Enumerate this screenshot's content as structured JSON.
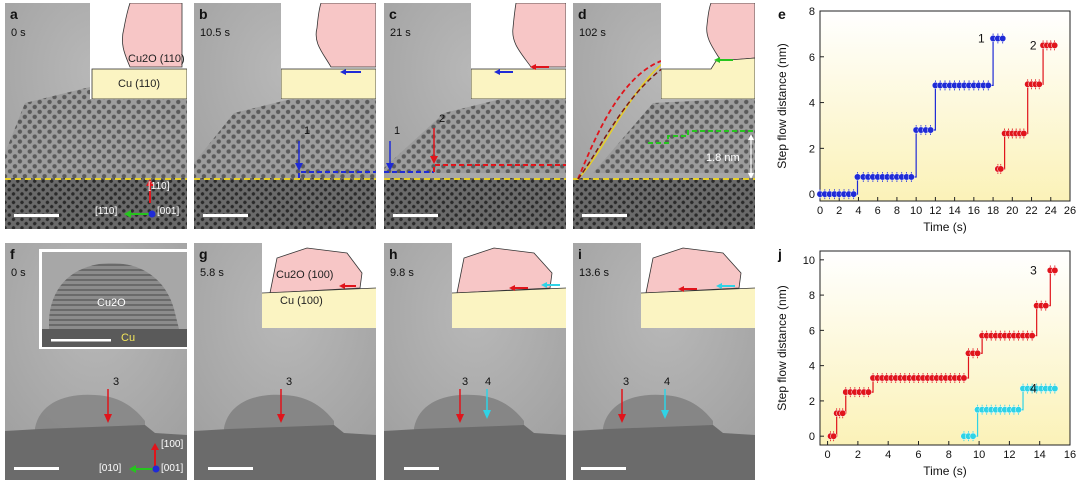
{
  "panels_top": [
    {
      "id": "a",
      "time": "0 s"
    },
    {
      "id": "b",
      "time": "10.5 s"
    },
    {
      "id": "c",
      "time": "21 s"
    },
    {
      "id": "d",
      "time": "102 s"
    }
  ],
  "panels_bottom": [
    {
      "id": "f",
      "time": "0 s"
    },
    {
      "id": "g",
      "time": "5.8 s"
    },
    {
      "id": "h",
      "time": "9.8 s"
    },
    {
      "id": "i",
      "time": "13.6 s"
    }
  ],
  "labels": {
    "cu2o_110": "Cu2O (110)",
    "cu_110": "Cu (110)",
    "cu2o_100": "Cu2O (100)",
    "cu_100": "Cu (100)",
    "cu2o": "Cu2O",
    "cu": "Cu",
    "dir_110": "[110]",
    "dir_m110": "[1̄10]",
    "dir_001": "[001]",
    "dir_100": "[100]",
    "dir_010": "[010]",
    "step1": "1",
    "step2": "2",
    "step3": "3",
    "step4": "4",
    "height": "1.8 nm"
  },
  "colors": {
    "blue": "#1f2bd6",
    "red": "#e0141b",
    "cyan": "#2fd3e6",
    "yellow_dash": "#e6cf2a",
    "green": "#26c41e",
    "oxide_fill": "#f7c6c6",
    "cu_fill": "#fbf4c2"
  },
  "chart_data": [
    {
      "panel": "e",
      "type": "line",
      "xlabel": "Time (s)",
      "ylabel": "Step flow distance (nm)",
      "xlim": [
        0,
        26
      ],
      "ylim": [
        -0.3,
        8
      ],
      "xticks": [
        0,
        2,
        4,
        6,
        8,
        10,
        12,
        14,
        16,
        18,
        20,
        22,
        24,
        26
      ],
      "yticks": [
        0,
        2,
        4,
        6,
        8
      ],
      "series": [
        {
          "name": "1",
          "color": "#1f2bd6",
          "points": [
            [
              0,
              0
            ],
            [
              0.5,
              0
            ],
            [
              1,
              0
            ],
            [
              1.5,
              0
            ],
            [
              2,
              0
            ],
            [
              2.5,
              0
            ],
            [
              3,
              0
            ],
            [
              3.5,
              0
            ],
            [
              3.9,
              0.75
            ],
            [
              4.5,
              0.75
            ],
            [
              5,
              0.75
            ],
            [
              5.5,
              0.75
            ],
            [
              6,
              0.75
            ],
            [
              6.5,
              0.75
            ],
            [
              7,
              0.75
            ],
            [
              7.5,
              0.75
            ],
            [
              8,
              0.75
            ],
            [
              8.5,
              0.75
            ],
            [
              9,
              0.75
            ],
            [
              9.5,
              0.75
            ],
            [
              10,
              2.8
            ],
            [
              10.5,
              2.8
            ],
            [
              11,
              2.8
            ],
            [
              11.5,
              2.8
            ],
            [
              12,
              4.75
            ],
            [
              12.5,
              4.75
            ],
            [
              13,
              4.75
            ],
            [
              13.5,
              4.75
            ],
            [
              14,
              4.75
            ],
            [
              14.5,
              4.75
            ],
            [
              15,
              4.75
            ],
            [
              15.5,
              4.75
            ],
            [
              16,
              4.75
            ],
            [
              16.5,
              4.75
            ],
            [
              17,
              4.75
            ],
            [
              17.5,
              4.75
            ],
            [
              18,
              6.8
            ],
            [
              18.5,
              6.8
            ],
            [
              19,
              6.8
            ]
          ]
        },
        {
          "name": "2",
          "color": "#e0141b",
          "points": [
            [
              18.5,
              1.1
            ],
            [
              18.8,
              1.1
            ],
            [
              19.2,
              2.65
            ],
            [
              19.6,
              2.65
            ],
            [
              20,
              2.65
            ],
            [
              20.4,
              2.65
            ],
            [
              20.8,
              2.65
            ],
            [
              21.2,
              2.65
            ],
            [
              21.6,
              4.8
            ],
            [
              22,
              4.8
            ],
            [
              22.4,
              4.8
            ],
            [
              22.8,
              4.8
            ],
            [
              23.2,
              6.5
            ],
            [
              23.6,
              6.5
            ],
            [
              24,
              6.5
            ],
            [
              24.4,
              6.5
            ]
          ]
        }
      ]
    },
    {
      "panel": "j",
      "type": "line",
      "xlabel": "Time (s)",
      "ylabel": "Step flow distance (nm)",
      "xlim": [
        -0.5,
        16
      ],
      "ylim": [
        -0.5,
        10.5
      ],
      "xticks": [
        0,
        2,
        4,
        6,
        8,
        10,
        12,
        14,
        16
      ],
      "yticks": [
        0,
        2,
        4,
        6,
        8,
        10
      ],
      "series": [
        {
          "name": "3",
          "color": "#e0141b",
          "points": [
            [
              0.2,
              0
            ],
            [
              0.4,
              0
            ],
            [
              0.6,
              1.3
            ],
            [
              0.8,
              1.3
            ],
            [
              1.0,
              1.3
            ],
            [
              1.2,
              2.5
            ],
            [
              1.5,
              2.5
            ],
            [
              1.8,
              2.5
            ],
            [
              2.1,
              2.5
            ],
            [
              2.4,
              2.5
            ],
            [
              2.7,
              2.5
            ],
            [
              3.0,
              3.3
            ],
            [
              3.3,
              3.3
            ],
            [
              3.6,
              3.3
            ],
            [
              3.9,
              3.3
            ],
            [
              4.2,
              3.3
            ],
            [
              4.5,
              3.3
            ],
            [
              4.8,
              3.3
            ],
            [
              5.1,
              3.3
            ],
            [
              5.4,
              3.3
            ],
            [
              5.7,
              3.3
            ],
            [
              6.0,
              3.3
            ],
            [
              6.3,
              3.3
            ],
            [
              6.6,
              3.3
            ],
            [
              6.9,
              3.3
            ],
            [
              7.2,
              3.3
            ],
            [
              7.5,
              3.3
            ],
            [
              7.8,
              3.3
            ],
            [
              8.1,
              3.3
            ],
            [
              8.4,
              3.3
            ],
            [
              8.7,
              3.3
            ],
            [
              9.0,
              3.3
            ],
            [
              9.3,
              4.7
            ],
            [
              9.6,
              4.7
            ],
            [
              9.9,
              4.7
            ],
            [
              10.2,
              5.7
            ],
            [
              10.5,
              5.7
            ],
            [
              10.8,
              5.7
            ],
            [
              11.1,
              5.7
            ],
            [
              11.4,
              5.7
            ],
            [
              11.7,
              5.7
            ],
            [
              12.0,
              5.7
            ],
            [
              12.3,
              5.7
            ],
            [
              12.6,
              5.7
            ],
            [
              12.9,
              5.7
            ],
            [
              13.2,
              5.7
            ],
            [
              13.5,
              5.7
            ],
            [
              13.8,
              7.4
            ],
            [
              14.1,
              7.4
            ],
            [
              14.4,
              7.4
            ],
            [
              14.7,
              9.4
            ],
            [
              15.0,
              9.4
            ]
          ]
        },
        {
          "name": "4",
          "color": "#2fd3e6",
          "points": [
            [
              9.0,
              0
            ],
            [
              9.3,
              0
            ],
            [
              9.6,
              0
            ],
            [
              9.9,
              1.5
            ],
            [
              10.2,
              1.5
            ],
            [
              10.5,
              1.5
            ],
            [
              10.8,
              1.5
            ],
            [
              11.1,
              1.5
            ],
            [
              11.4,
              1.5
            ],
            [
              11.7,
              1.5
            ],
            [
              12.0,
              1.5
            ],
            [
              12.3,
              1.5
            ],
            [
              12.6,
              1.5
            ],
            [
              12.9,
              2.7
            ],
            [
              13.2,
              2.7
            ],
            [
              13.5,
              2.7
            ],
            [
              13.8,
              2.7
            ],
            [
              14.1,
              2.7
            ],
            [
              14.4,
              2.7
            ],
            [
              14.7,
              2.7
            ],
            [
              15.0,
              2.7
            ]
          ]
        }
      ]
    }
  ]
}
